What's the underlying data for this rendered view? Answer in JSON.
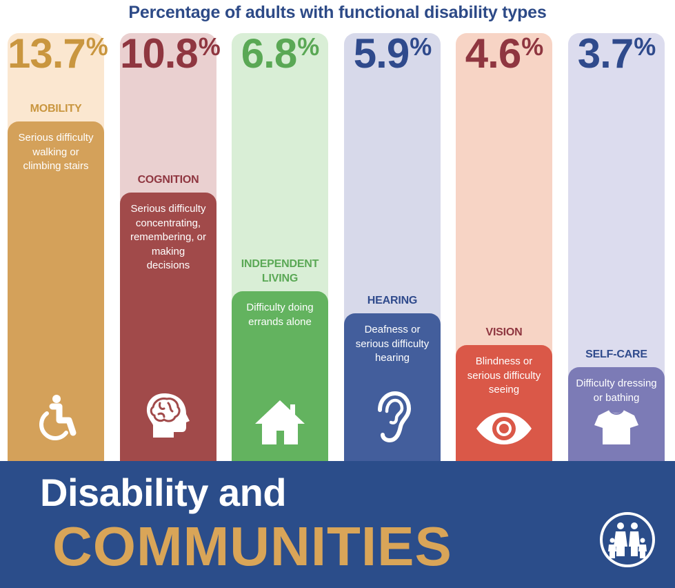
{
  "title": "Percentage of adults with functional disability types",
  "footer": {
    "line1": "Disability and",
    "line2": "COMMUNITIES",
    "logo_icon": "family-logo-icon"
  },
  "colors": {
    "title": "#2d4a87",
    "footer_bg": "#2b4d8a",
    "footer_accent": "#d9a558"
  },
  "chart_data": {
    "type": "bar",
    "title": "Percentage of adults with functional disability types",
    "unit": "%",
    "categories": [
      "MOBILITY",
      "COGNITION",
      "INDEPENDENT LIVING",
      "HEARING",
      "VISION",
      "SELF-CARE"
    ],
    "values": [
      13.7,
      10.8,
      6.8,
      5.9,
      4.6,
      3.7
    ],
    "value_labels": [
      "13.7",
      "10.8",
      "6.8",
      "5.9",
      "4.6",
      "3.7"
    ],
    "series": [
      {
        "label": "MOBILITY",
        "label_lines": [
          "MOBILITY"
        ],
        "value": 13.7,
        "value_label": "13.7",
        "description": [
          "Serious difficulty",
          "walking or",
          "climbing stairs"
        ],
        "bar_color": "#d4a15a",
        "bg_color": "#fbe7d0",
        "text_color": "#c9963f",
        "icon": "wheelchair-icon"
      },
      {
        "label": "COGNITION",
        "label_lines": [
          "COGNITION"
        ],
        "value": 10.8,
        "value_label": "10.8",
        "description": [
          "Serious difficulty",
          "concentrating,",
          "remembering, or",
          "making",
          "decisions"
        ],
        "bar_color": "#a14a4a",
        "bg_color": "#ead0d0",
        "text_color": "#8f3640",
        "icon": "brain-icon"
      },
      {
        "label": "INDEPENDENT LIVING",
        "label_lines": [
          "INDEPENDENT",
          "LIVING"
        ],
        "value": 6.8,
        "value_label": "6.8",
        "description": [
          "Difficulty doing",
          "errands alone"
        ],
        "bar_color": "#63b35f",
        "bg_color": "#d9eed6",
        "text_color": "#5aa855",
        "icon": "house-icon"
      },
      {
        "label": "HEARING",
        "label_lines": [
          "HEARING"
        ],
        "value": 5.9,
        "value_label": "5.9",
        "description": [
          "Deafness or",
          "serious difficulty",
          "hearing"
        ],
        "bar_color": "#435e9c",
        "bg_color": "#d7d9ea",
        "text_color": "#2f4a8c",
        "icon": "ear-icon"
      },
      {
        "label": "VISION",
        "label_lines": [
          "VISION"
        ],
        "value": 4.6,
        "value_label": "4.6",
        "description": [
          "Blindness or",
          "serious difficulty",
          "seeing"
        ],
        "bar_color": "#da5848",
        "bg_color": "#f7d4c5",
        "text_color": "#8f3640",
        "icon": "eye-icon"
      },
      {
        "label": "SELF-CARE",
        "label_lines": [
          "SELF-CARE"
        ],
        "value": 3.7,
        "value_label": "3.7",
        "description": [
          "Difficulty dressing",
          "or bathing"
        ],
        "bar_color": "#7c7bb6",
        "bg_color": "#dcdcee",
        "text_color": "#2f4a8c",
        "icon": "shirt-icon"
      }
    ]
  }
}
